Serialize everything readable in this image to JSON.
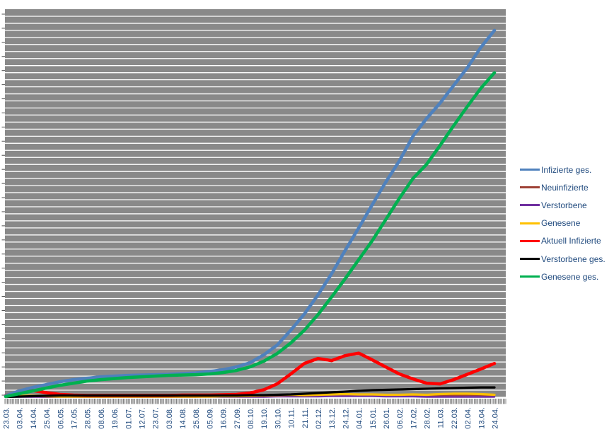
{
  "chart_data": {
    "type": "line",
    "title": "",
    "legend_position": "right",
    "plot_bg_color": "#898989",
    "gridline_color": "#FFFFFF",
    "tick_color": "#4D4D4D",
    "axis_text_color": "#1F497D",
    "y_axis": {
      "tick_labels_visible": false,
      "gridline_intervals": 55,
      "unit_note": "y-axis labels not visible in screenshot; values measured in gridline intervals above baseline"
    },
    "x_tick_labels": [
      "23.03.",
      "03.04.",
      "14.04.",
      "25.04.",
      "06.05.",
      "17.05.",
      "28.05.",
      "08.06.",
      "19.06.",
      "01.07.",
      "12.07.",
      "23.07.",
      "03.08.",
      "14.08.",
      "25.08.",
      "05.09.",
      "16.09.",
      "27.09.",
      "08.10.",
      "19.10.",
      "30.10.",
      "10.11.",
      "21.11.",
      "02.12.",
      "13.12.",
      "24.12.",
      "04.01.",
      "15.01.",
      "26.01.",
      "06.02.",
      "17.02.",
      "28.02.",
      "11.03.",
      "22.03.",
      "02.04.",
      "13.04.",
      "24.04."
    ],
    "daily_minor_ticks": 398,
    "series": [
      {
        "name": "Infizierte ges.",
        "color": "#4F81BD",
        "values": [
          0.2,
          0.9,
          1.4,
          1.8,
          2.2,
          2.5,
          2.7,
          2.9,
          3.0,
          3.1,
          3.15,
          3.2,
          3.25,
          3.35,
          3.45,
          3.65,
          3.9,
          4.3,
          4.9,
          6.0,
          7.4,
          9.5,
          11.8,
          14.5,
          17.5,
          20.8,
          24.0,
          27.3,
          30.5,
          33.5,
          37.0,
          39.5,
          41.7,
          44.2,
          46.7,
          49.6,
          52.0
        ]
      },
      {
        "name": "Neuinfizierte",
        "color": "#9E4136",
        "values": [
          0.1,
          0.15,
          0.1,
          0.05,
          0.05,
          0.05,
          0.05,
          0.05,
          0.05,
          0.05,
          0.05,
          0.05,
          0.05,
          0.05,
          0.05,
          0.1,
          0.1,
          0.1,
          0.15,
          0.2,
          0.3,
          0.35,
          0.3,
          0.3,
          0.35,
          0.3,
          0.25,
          0.3,
          0.25,
          0.2,
          0.2,
          0.15,
          0.2,
          0.25,
          0.3,
          0.3,
          0.25
        ]
      },
      {
        "name": "Verstorbene",
        "color": "#7030A0",
        "values": [
          0.05,
          0.05,
          0.05,
          0.05,
          0.05,
          0.05,
          0.05,
          0.05,
          0.05,
          0.05,
          0.05,
          0.05,
          0.05,
          0.05,
          0.05,
          0.05,
          0.05,
          0.05,
          0.05,
          0.05,
          0.1,
          0.1,
          0.1,
          0.1,
          0.15,
          0.15,
          0.15,
          0.15,
          0.1,
          0.1,
          0.1,
          0.05,
          0.05,
          0.05,
          0.05,
          0.05,
          0.05
        ]
      },
      {
        "name": "Genesene",
        "color": "#FFC000",
        "values": [
          0.15,
          0.2,
          0.2,
          0.15,
          0.1,
          0.1,
          0.1,
          0.1,
          0.1,
          0.1,
          0.1,
          0.1,
          0.1,
          0.1,
          0.1,
          0.1,
          0.15,
          0.15,
          0.2,
          0.25,
          0.3,
          0.35,
          0.3,
          0.35,
          0.4,
          0.45,
          0.4,
          0.4,
          0.35,
          0.35,
          0.4,
          0.35,
          0.45,
          0.5,
          0.5,
          0.45,
          0.35
        ]
      },
      {
        "name": "Aktuell Infizierte",
        "color": "#FF0000",
        "values": [
          0.25,
          0.75,
          0.95,
          0.65,
          0.4,
          0.3,
          0.25,
          0.25,
          0.25,
          0.25,
          0.25,
          0.25,
          0.25,
          0.3,
          0.3,
          0.3,
          0.35,
          0.4,
          0.6,
          1.05,
          1.9,
          3.3,
          4.8,
          5.5,
          5.2,
          5.9,
          6.25,
          5.3,
          4.3,
          3.3,
          2.6,
          2.0,
          1.9,
          2.5,
          3.25,
          4.0,
          4.8
        ]
      },
      {
        "name": "Verstorbene ges.",
        "color": "#000000",
        "values": [
          0.05,
          0.1,
          0.15,
          0.2,
          0.25,
          0.25,
          0.25,
          0.25,
          0.25,
          0.25,
          0.25,
          0.25,
          0.25,
          0.25,
          0.25,
          0.25,
          0.25,
          0.25,
          0.3,
          0.3,
          0.35,
          0.4,
          0.5,
          0.6,
          0.7,
          0.8,
          0.9,
          1.0,
          1.05,
          1.1,
          1.15,
          1.2,
          1.25,
          1.3,
          1.35,
          1.4,
          1.4
        ]
      },
      {
        "name": "Genesene ges.",
        "color": "#00B050",
        "values": [
          0.1,
          0.5,
          0.9,
          1.3,
          1.7,
          2.0,
          2.3,
          2.5,
          2.65,
          2.8,
          2.9,
          3.0,
          3.1,
          3.15,
          3.2,
          3.3,
          3.5,
          3.8,
          4.3,
          5.1,
          6.2,
          7.7,
          9.5,
          11.7,
          14.2,
          16.8,
          19.5,
          22.2,
          25.2,
          28.2,
          31.0,
          33.0,
          35.7,
          38.5,
          41.2,
          43.8,
          46.0
        ]
      }
    ],
    "draw_order": [
      1,
      2,
      3,
      4,
      5,
      0,
      6
    ],
    "line_widths": [
      4.5,
      2.4,
      2.4,
      3.2,
      4.5,
      3.2,
      4.5
    ]
  }
}
